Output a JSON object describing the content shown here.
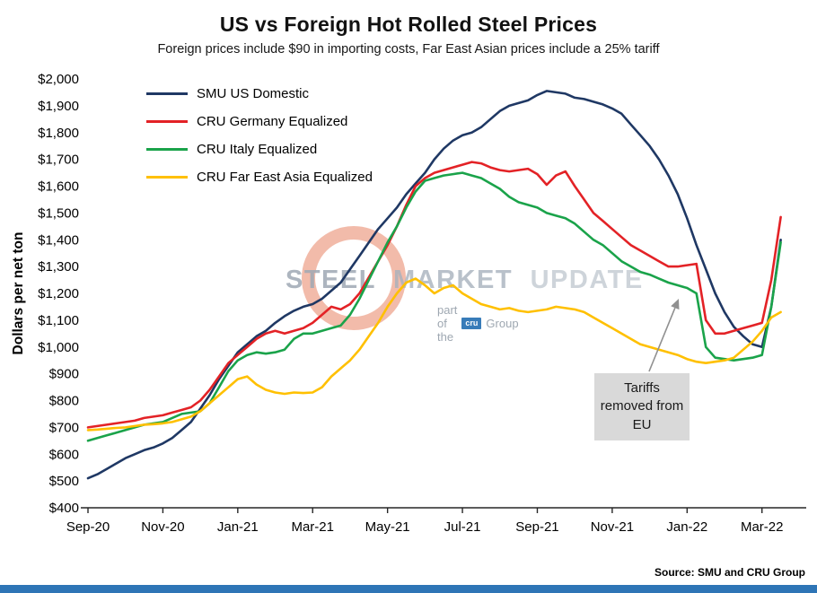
{
  "header": {
    "title": "US vs Foreign Hot Rolled Steel Prices",
    "subtitle": "Foreign prices include $90 in importing costs, Far East Asian prices include a 25% tariff"
  },
  "axes": {
    "y_label": "Dollars per net ton"
  },
  "watermark": {
    "word1": "STEEL",
    "word2": "MARKET",
    "word3": "UPDATE",
    "tagline_prefix": "part of the",
    "logo_text": "cru",
    "tagline_suffix": "Group"
  },
  "annotation": {
    "text": "Tariffs removed from EU"
  },
  "footer": {
    "source": "Source: SMU and CRU Group"
  },
  "chart_data": {
    "type": "line",
    "title": "US vs Foreign Hot Rolled Steel Prices",
    "subtitle": "Foreign prices include $90 in importing costs, Far East Asian prices include a 25% tariff",
    "xlabel": "",
    "ylabel": "Dollars per net ton",
    "ylim": [
      400,
      2000
    ],
    "ytick_step": 100,
    "xlim": [
      0,
      18.75
    ],
    "x_start": 0,
    "x_step": 0.25,
    "x_unit": "months since Sep-2020 (weekly data points)",
    "grid": false,
    "legend_position": "top-left",
    "xticks": [
      {
        "m": 0,
        "label": "Sep-20"
      },
      {
        "m": 2,
        "label": "Nov-20"
      },
      {
        "m": 4,
        "label": "Jan-21"
      },
      {
        "m": 6,
        "label": "Mar-21"
      },
      {
        "m": 8,
        "label": "May-21"
      },
      {
        "m": 10,
        "label": "Jul-21"
      },
      {
        "m": 12,
        "label": "Sep-21"
      },
      {
        "m": 14,
        "label": "Nov-21"
      },
      {
        "m": 16,
        "label": "Jan-22"
      },
      {
        "m": 18,
        "label": "Mar-22"
      }
    ],
    "series": [
      {
        "id": "smu-us-domestic",
        "name": "SMU US Domestic",
        "color": "#1f3864",
        "values": [
          510,
          525,
          545,
          565,
          585,
          600,
          615,
          625,
          640,
          660,
          690,
          720,
          770,
          820,
          880,
          930,
          980,
          1010,
          1040,
          1060,
          1090,
          1115,
          1135,
          1150,
          1160,
          1180,
          1210,
          1240,
          1290,
          1340,
          1390,
          1440,
          1480,
          1520,
          1570,
          1610,
          1650,
          1700,
          1740,
          1770,
          1790,
          1800,
          1820,
          1850,
          1880,
          1900,
          1910,
          1920,
          1940,
          1955,
          1950,
          1945,
          1930,
          1925,
          1915,
          1905,
          1890,
          1870,
          1830,
          1790,
          1750,
          1700,
          1640,
          1570,
          1480,
          1380,
          1290,
          1200,
          1130,
          1075,
          1040,
          1010,
          1000,
          1150,
          1400
        ]
      },
      {
        "id": "cru-germany-equalized",
        "name": "CRU Germany Equalized",
        "color": "#e32226",
        "values": [
          700,
          705,
          710,
          715,
          720,
          725,
          735,
          740,
          745,
          755,
          765,
          775,
          800,
          840,
          890,
          940,
          970,
          1000,
          1030,
          1050,
          1060,
          1050,
          1060,
          1070,
          1090,
          1120,
          1150,
          1140,
          1160,
          1200,
          1260,
          1320,
          1380,
          1450,
          1530,
          1600,
          1630,
          1650,
          1660,
          1670,
          1680,
          1690,
          1685,
          1670,
          1660,
          1655,
          1660,
          1665,
          1645,
          1605,
          1640,
          1655,
          1600,
          1550,
          1500,
          1470,
          1440,
          1410,
          1380,
          1360,
          1340,
          1320,
          1300,
          1300,
          1305,
          1310,
          1100,
          1050,
          1050,
          1060,
          1070,
          1080,
          1090,
          1250,
          1485
        ]
      },
      {
        "id": "cru-italy-equalized",
        "name": "CRU Italy Equalized",
        "color": "#1aa34a",
        "values": [
          650,
          660,
          670,
          680,
          690,
          700,
          710,
          715,
          720,
          735,
          750,
          755,
          760,
          790,
          850,
          910,
          950,
          970,
          980,
          975,
          980,
          990,
          1030,
          1050,
          1050,
          1060,
          1070,
          1080,
          1120,
          1180,
          1250,
          1320,
          1390,
          1450,
          1520,
          1580,
          1620,
          1630,
          1640,
          1645,
          1650,
          1640,
          1630,
          1610,
          1590,
          1560,
          1540,
          1530,
          1520,
          1500,
          1490,
          1480,
          1460,
          1430,
          1400,
          1380,
          1350,
          1320,
          1300,
          1280,
          1270,
          1255,
          1240,
          1230,
          1220,
          1200,
          1000,
          960,
          955,
          950,
          955,
          960,
          970,
          1150,
          1390
        ]
      },
      {
        "id": "cru-far-east-asia-equalized",
        "name": "CRU Far East Asia Equalized",
        "color": "#ffc000",
        "values": [
          690,
          692,
          695,
          698,
          700,
          705,
          710,
          712,
          715,
          720,
          730,
          740,
          760,
          790,
          820,
          850,
          880,
          890,
          860,
          840,
          830,
          825,
          830,
          828,
          830,
          850,
          890,
          920,
          950,
          990,
          1040,
          1090,
          1150,
          1200,
          1240,
          1255,
          1230,
          1200,
          1220,
          1230,
          1200,
          1180,
          1160,
          1150,
          1140,
          1145,
          1135,
          1130,
          1135,
          1140,
          1150,
          1145,
          1140,
          1130,
          1110,
          1090,
          1070,
          1050,
          1030,
          1010,
          1000,
          990,
          980,
          970,
          955,
          945,
          940,
          945,
          950,
          960,
          990,
          1020,
          1060,
          1110,
          1130
        ]
      }
    ],
    "annotation": {
      "text": "Tariffs removed from EU",
      "points_to": {
        "month": 16.4,
        "value": 1190
      }
    }
  }
}
